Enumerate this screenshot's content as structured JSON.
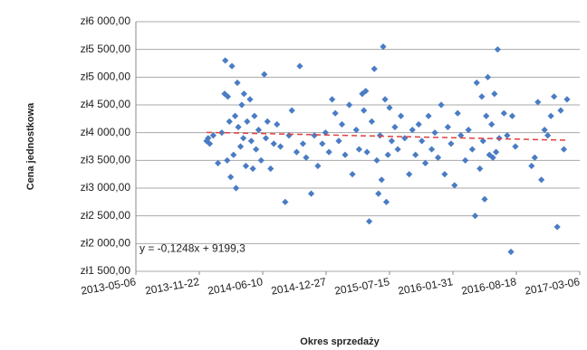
{
  "chart_data": {
    "type": "scatter",
    "y_label": "Cena jednostkowa",
    "x_label": "Okres sprzedaży",
    "color": "#4a7cc4",
    "grid": true,
    "xlim": [
      "2013-05-06",
      "2017-03-06"
    ],
    "xticks": [
      "2013-05-06",
      "2013-11-22",
      "2014-06-10",
      "2014-12-27",
      "2015-07-15",
      "2016-01-31",
      "2016-08-18",
      "2017-03-06"
    ],
    "ylim": [
      1500,
      6000
    ],
    "yticks": [
      {
        "value": 1500,
        "label": "zł1 500,00"
      },
      {
        "value": 2000,
        "label": "zł2 000,00"
      },
      {
        "value": 2500,
        "label": "zł2 500,00"
      },
      {
        "value": 3000,
        "label": "zł3 000,00"
      },
      {
        "value": 3500,
        "label": "zł3 500,00"
      },
      {
        "value": 4000,
        "label": "zł4 000,00"
      },
      {
        "value": 4500,
        "label": "zł4 500,00"
      },
      {
        "value": 5000,
        "label": "zł5 000,00"
      },
      {
        "value": 5500,
        "label": "zł5 500,00"
      },
      {
        "value": 6000,
        "label": "zł6 000,00"
      }
    ],
    "trendline": {
      "equation": "y = -0,1248x + 9199,3",
      "color": "#e04040",
      "x": [
        "2013-12-15",
        "2017-01-25"
      ],
      "values": [
        4005,
        3863
      ]
    },
    "x": [
      "2013-12-15",
      "2013-12-20",
      "2013-12-25",
      "2014-01-05",
      "2014-01-20",
      "2014-02-01",
      "2014-02-10",
      "2014-02-12",
      "2014-02-18",
      "2014-02-20",
      "2014-02-25",
      "2014-03-01",
      "2014-03-05",
      "2014-03-10",
      "2014-03-15",
      "2014-03-18",
      "2014-03-22",
      "2014-03-25",
      "2014-04-01",
      "2014-04-05",
      "2014-04-10",
      "2014-04-12",
      "2014-04-18",
      "2014-04-22",
      "2014-05-01",
      "2014-05-05",
      "2014-05-10",
      "2014-05-15",
      "2014-05-20",
      "2014-05-28",
      "2014-06-05",
      "2014-06-15",
      "2014-06-20",
      "2014-06-25",
      "2014-07-05",
      "2014-07-15",
      "2014-07-25",
      "2014-08-05",
      "2014-08-20",
      "2014-09-01",
      "2014-09-10",
      "2014-09-25",
      "2014-10-05",
      "2014-10-15",
      "2014-10-25",
      "2014-11-10",
      "2014-11-20",
      "2014-12-01",
      "2014-12-15",
      "2014-12-25",
      "2015-01-05",
      "2015-01-15",
      "2015-01-25",
      "2015-02-05",
      "2015-02-15",
      "2015-02-25",
      "2015-03-10",
      "2015-03-20",
      "2015-04-01",
      "2015-04-10",
      "2015-04-20",
      "2015-04-25",
      "2015-05-01",
      "2015-05-05",
      "2015-05-12",
      "2015-05-20",
      "2015-05-28",
      "2015-06-05",
      "2015-06-10",
      "2015-06-15",
      "2015-06-20",
      "2015-06-25",
      "2015-07-01",
      "2015-07-05",
      "2015-07-10",
      "2015-07-15",
      "2015-07-22",
      "2015-08-01",
      "2015-08-10",
      "2015-08-20",
      "2015-09-01",
      "2015-09-15",
      "2015-09-25",
      "2015-10-05",
      "2015-10-15",
      "2015-10-25",
      "2015-11-05",
      "2015-11-15",
      "2015-11-25",
      "2015-12-05",
      "2015-12-15",
      "2015-12-25",
      "2016-01-05",
      "2016-01-15",
      "2016-01-25",
      "2016-02-05",
      "2016-02-15",
      "2016-02-25",
      "2016-03-10",
      "2016-03-20",
      "2016-04-01",
      "2016-04-10",
      "2016-04-15",
      "2016-04-25",
      "2016-05-01",
      "2016-05-05",
      "2016-05-10",
      "2016-05-15",
      "2016-05-20",
      "2016-05-25",
      "2016-06-01",
      "2016-06-05",
      "2016-06-10",
      "2016-06-15",
      "2016-06-20",
      "2016-06-25",
      "2016-07-10",
      "2016-07-20",
      "2016-08-01",
      "2016-08-05",
      "2016-08-15",
      "2016-10-05",
      "2016-10-15",
      "2016-10-25",
      "2016-11-05",
      "2016-11-15",
      "2016-11-25",
      "2016-12-05",
      "2016-12-15",
      "2016-12-25",
      "2017-01-05",
      "2017-01-15",
      "2017-01-25"
    ],
    "values": [
      3850,
      3900,
      3800,
      3950,
      3450,
      4000,
      4700,
      5300,
      3500,
      4650,
      4200,
      3200,
      5200,
      3600,
      4300,
      3000,
      4900,
      4100,
      3750,
      4500,
      3900,
      4700,
      3400,
      4200,
      4600,
      3850,
      3350,
      4300,
      3700,
      4050,
      3500,
      5050,
      3900,
      4200,
      3350,
      3800,
      4150,
      3750,
      2750,
      3950,
      4400,
      3650,
      5200,
      3800,
      3550,
      2900,
      3950,
      3400,
      3800,
      4000,
      3650,
      4600,
      4350,
      3850,
      4150,
      3600,
      4500,
      3250,
      4050,
      3700,
      4700,
      4400,
      4750,
      3650,
      2400,
      4200,
      5150,
      3500,
      2900,
      3950,
      3150,
      5550,
      4600,
      2750,
      3600,
      4450,
      3850,
      4100,
      3700,
      4300,
      3900,
      3250,
      4050,
      3600,
      4150,
      3850,
      3450,
      4300,
      3700,
      4000,
      3550,
      4500,
      3250,
      4100,
      3800,
      3050,
      4350,
      3950,
      3500,
      4050,
      3700,
      2500,
      4900,
      3350,
      4650,
      3850,
      2800,
      4300,
      5000,
      3600,
      4150,
      3550,
      4700,
      3650,
      5500,
      3900,
      4350,
      3950,
      1850,
      4300,
      3750,
      3400,
      3550,
      4550,
      3150,
      4050,
      3950,
      4300,
      4650,
      2300,
      4400,
      3700,
      4600
    ]
  }
}
